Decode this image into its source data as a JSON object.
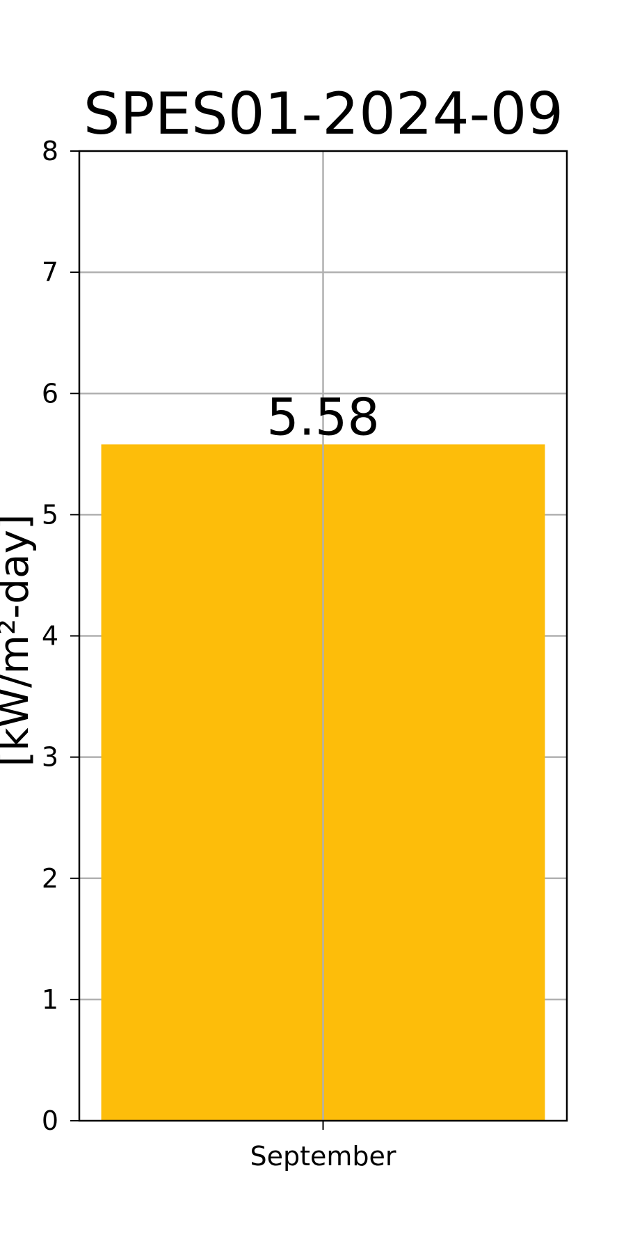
{
  "chart_data": {
    "type": "bar",
    "title": "SPES01-2024-09",
    "ylabel": "[kW/m²-day]",
    "xlabel": "",
    "categories": [
      "September"
    ],
    "values": [
      5.58
    ],
    "value_labels": [
      "5.58"
    ],
    "ylim": [
      0,
      8
    ],
    "yticks": [
      0,
      1,
      2,
      3,
      4,
      5,
      6,
      7,
      8
    ],
    "grid": true,
    "bar_color": "#FDBD0A",
    "grid_color": "#b0b0b0"
  }
}
